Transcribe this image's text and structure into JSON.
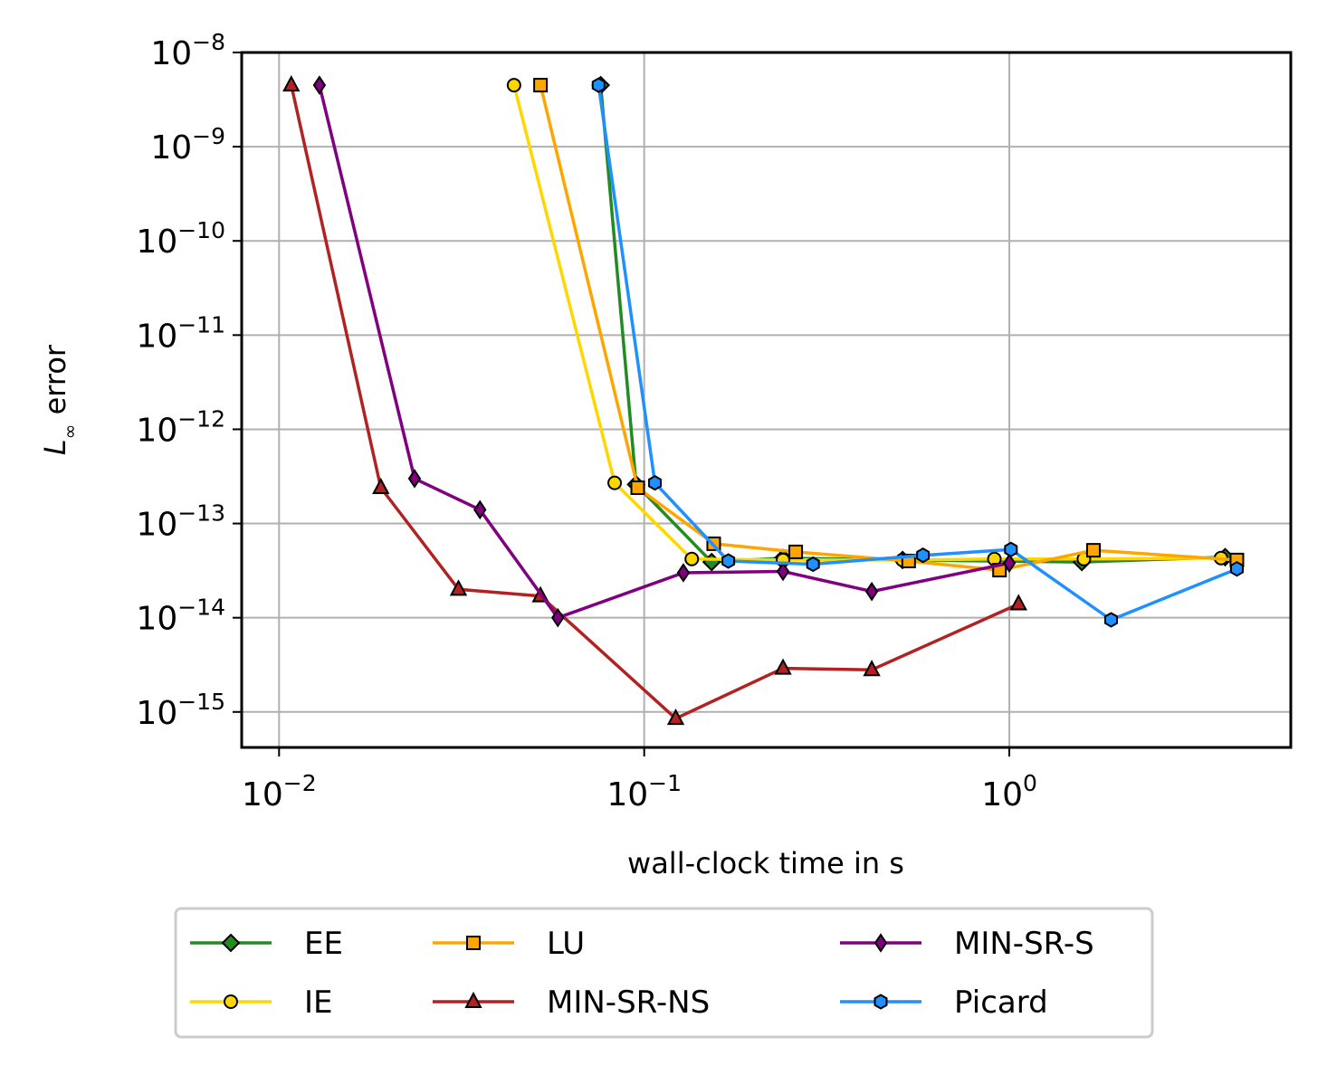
{
  "chart_data": {
    "type": "line",
    "xscale": "log",
    "yscale": "log",
    "xlabel": "wall-clock time in s",
    "ylabel_main": "L",
    "ylabel_sub": "∞",
    "ylabel_rest": " error",
    "xlim": [
      0.0079,
      5.9
    ],
    "ylim": [
      4.2e-16,
      1e-08
    ],
    "grid": true,
    "legend_position": "below",
    "x_ticks": [
      {
        "base": "10",
        "exp": "−2",
        "value": 0.01
      },
      {
        "base": "10",
        "exp": "−1",
        "value": 0.1
      },
      {
        "base": "10",
        "exp": "0",
        "value": 1
      }
    ],
    "y_ticks": [
      {
        "base": "10",
        "exp": "−8",
        "value": 1e-08
      },
      {
        "base": "10",
        "exp": "−9",
        "value": 1e-09
      },
      {
        "base": "10",
        "exp": "−10",
        "value": 1e-10
      },
      {
        "base": "10",
        "exp": "−11",
        "value": 1e-11
      },
      {
        "base": "10",
        "exp": "−12",
        "value": 1e-12
      },
      {
        "base": "10",
        "exp": "−13",
        "value": 1e-13
      },
      {
        "base": "10",
        "exp": "−14",
        "value": 1e-14
      },
      {
        "base": "10",
        "exp": "−15",
        "value": 1e-15
      }
    ],
    "series": [
      {
        "name": "EE",
        "color": "#228b22",
        "marker": "diamond",
        "x": [
          0.076,
          0.095,
          0.153,
          0.24,
          0.51,
          1.58,
          3.9
        ],
        "y": [
          4.5e-09,
          2.6e-13,
          3.9e-14,
          4.3e-14,
          4.1e-14,
          3.9e-14,
          4.4e-14
        ]
      },
      {
        "name": "IE",
        "color": "#ffd700",
        "marker": "circle",
        "x": [
          0.044,
          0.083,
          0.135,
          0.24,
          0.51,
          0.91,
          1.6,
          3.8
        ],
        "y": [
          4.5e-09,
          2.7e-13,
          4.2e-14,
          4.1e-14,
          4.1e-14,
          4.2e-14,
          4.2e-14,
          4.3e-14
        ]
      },
      {
        "name": "LU",
        "color": "#ffa500",
        "marker": "square",
        "x": [
          0.052,
          0.096,
          0.155,
          0.26,
          0.53,
          0.94,
          1.7,
          4.2
        ],
        "y": [
          4.5e-09,
          2.4e-13,
          6.1e-14,
          5e-14,
          4e-14,
          3.2e-14,
          5.2e-14,
          4.1e-14
        ]
      },
      {
        "name": "MIN-SR-NS",
        "color": "#b22222",
        "marker": "triangle",
        "x": [
          0.0108,
          0.019,
          0.031,
          0.052,
          0.122,
          0.24,
          0.42,
          1.06
        ],
        "y": [
          4.5e-09,
          2.4e-13,
          2e-14,
          1.7e-14,
          8.5e-16,
          2.9e-15,
          2.8e-15,
          1.4e-14
        ]
      },
      {
        "name": "MIN-SR-S",
        "color": "#800080",
        "marker": "thin_diamond",
        "x": [
          0.0129,
          0.0235,
          0.0355,
          0.058,
          0.128,
          0.24,
          0.42,
          1.0
        ],
        "y": [
          4.5e-09,
          3e-13,
          1.4e-13,
          1e-14,
          3e-14,
          3.1e-14,
          1.9e-14,
          3.8e-14
        ]
      },
      {
        "name": "Picard",
        "color": "#1e90ff",
        "marker": "hexagon",
        "x": [
          0.075,
          0.107,
          0.17,
          0.29,
          0.58,
          1.01,
          1.9,
          4.2
        ],
        "y": [
          4.5e-09,
          2.7e-13,
          4e-14,
          3.7e-14,
          4.6e-14,
          5.3e-14,
          9.5e-15,
          3.3e-14
        ]
      }
    ]
  }
}
